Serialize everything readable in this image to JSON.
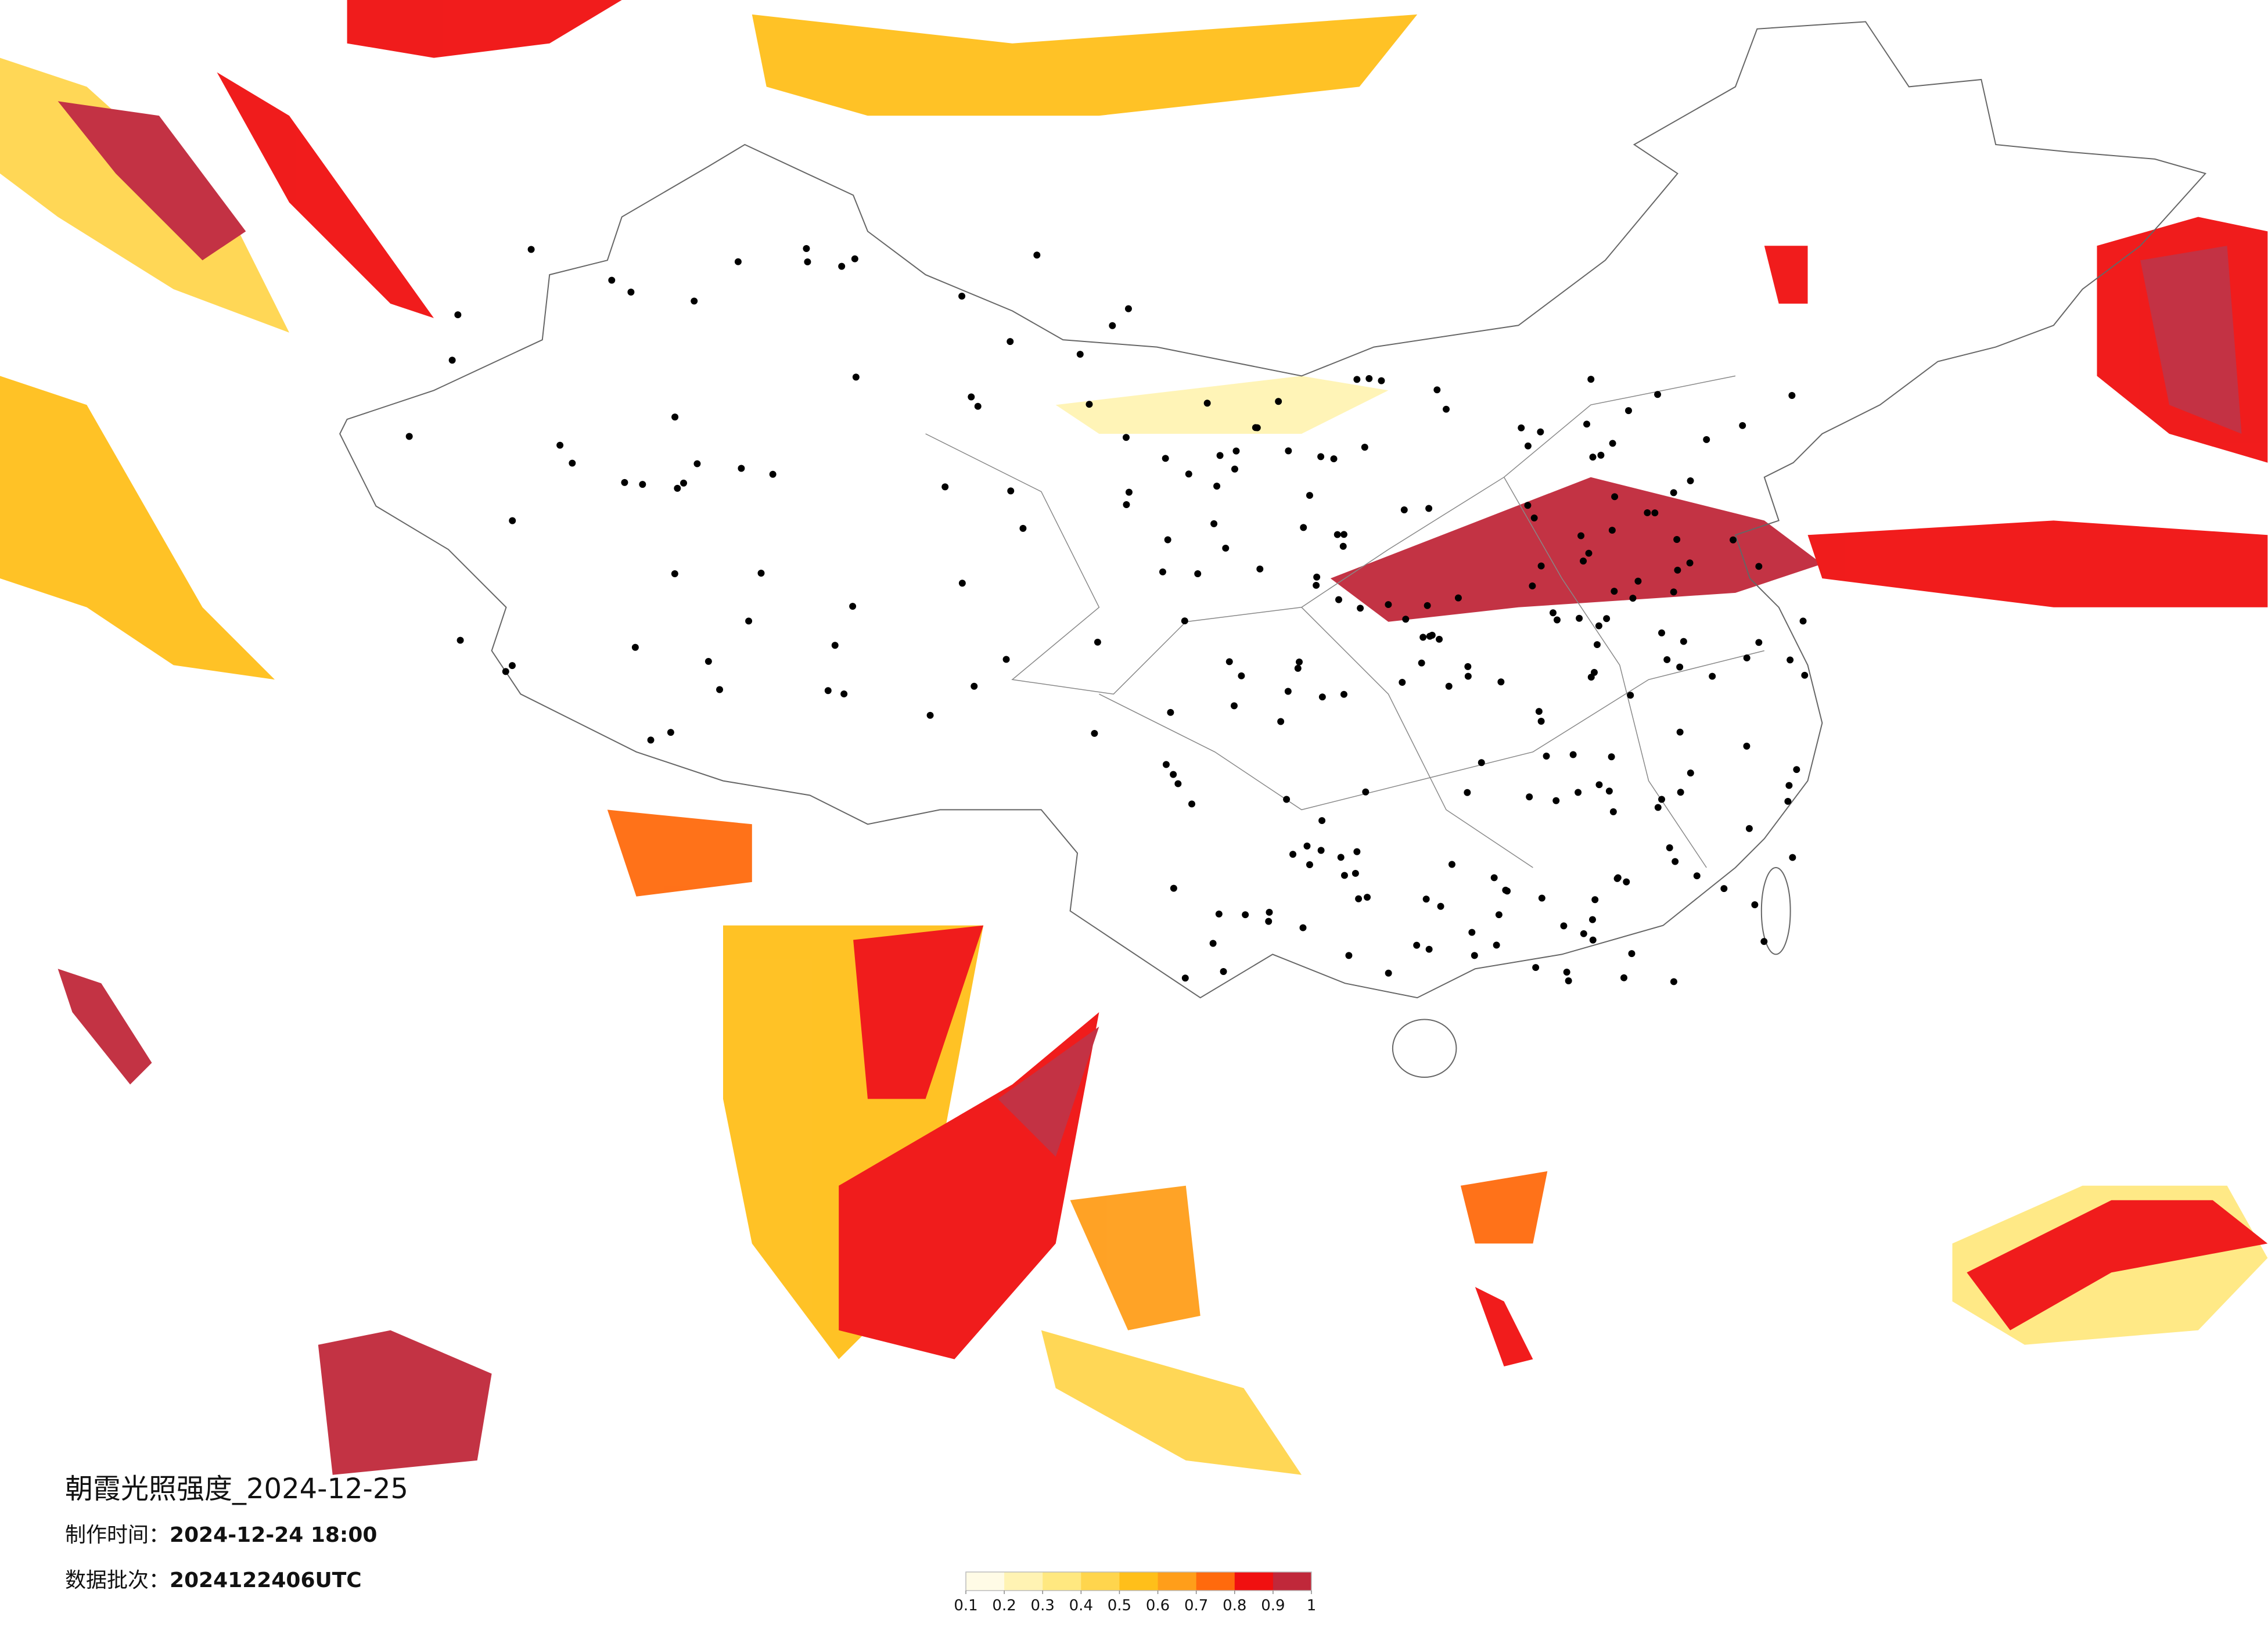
{
  "title": "朝霞光照强度_2024-12-25",
  "make_time": {
    "label": "制作时间：",
    "value": "2024-12-24 18:00"
  },
  "batch": {
    "label": "数据批次：",
    "value": "2024122406UTC"
  },
  "colorbar": {
    "ticks": [
      0.1,
      0.2,
      0.3,
      0.4,
      0.5,
      0.6,
      0.7,
      0.8,
      0.9,
      1
    ],
    "colors": [
      "#fffbe6",
      "#fff3b3",
      "#ffe880",
      "#ffd54d",
      "#ffbf1a",
      "#ff9e1a",
      "#ff6a0d",
      "#f01010",
      "#c0283a"
    ]
  }
}
